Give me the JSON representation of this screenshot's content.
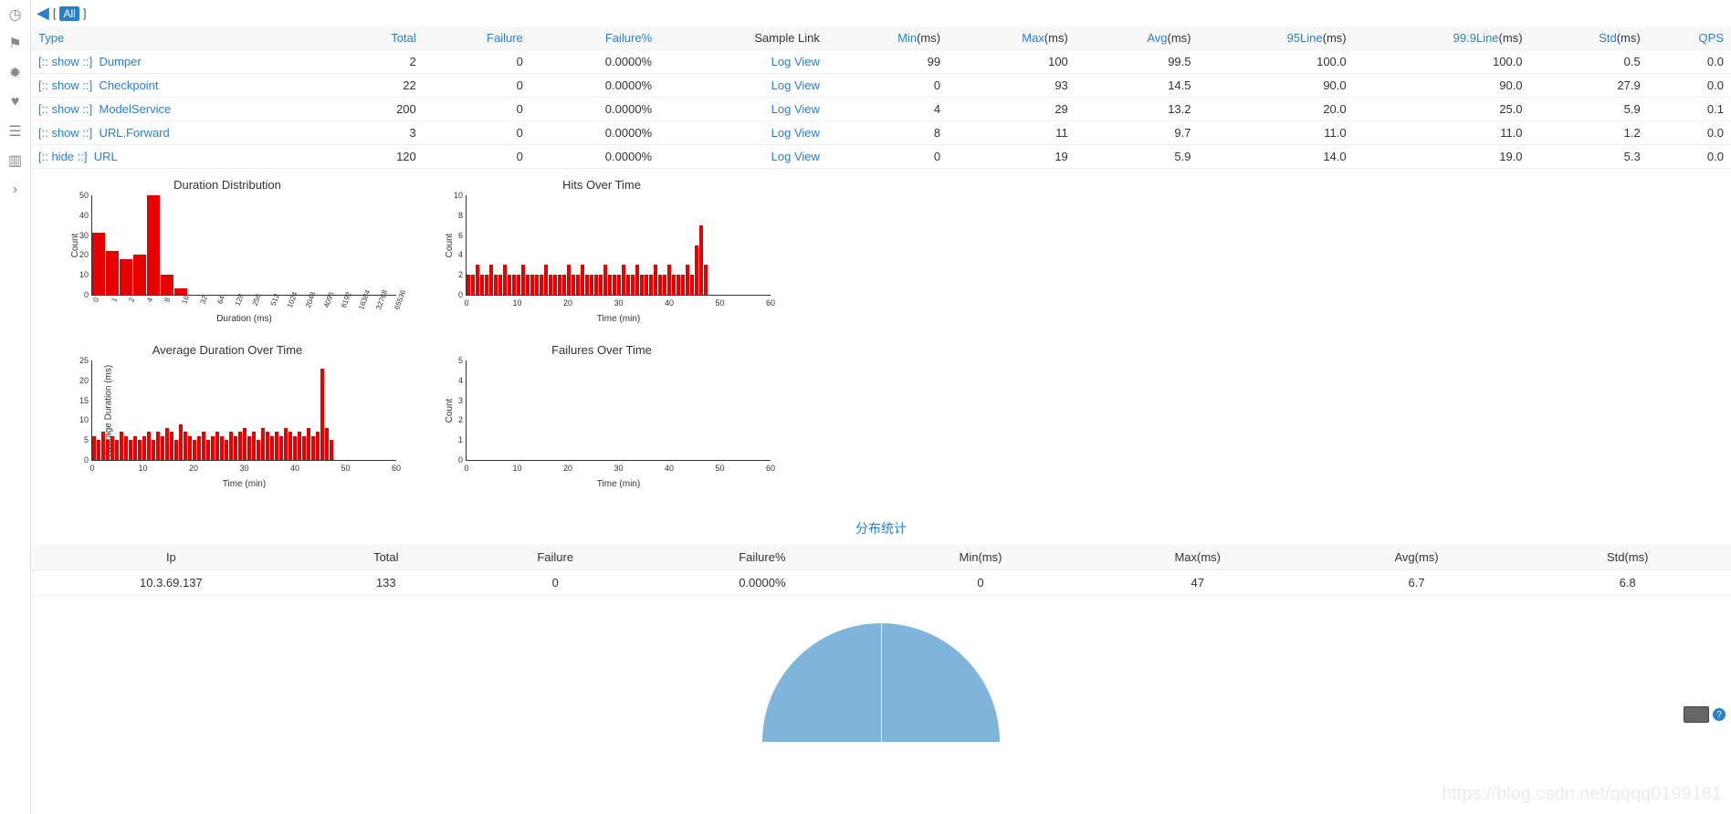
{
  "topbar": {
    "all_label": "All"
  },
  "sidebar": {
    "icons": [
      "clock-icon",
      "flag-icon",
      "bug-icon",
      "heart-icon",
      "list-icon",
      "chart-icon",
      "arrow-icon"
    ]
  },
  "table": {
    "headers": {
      "type": "Type",
      "total": "Total",
      "failure": "Failure",
      "failure_pct": "Failure%",
      "sample": "Sample Link",
      "min": "Min",
      "max": "Max",
      "avg": "Avg",
      "p95": "95Line",
      "p999": "99.9Line",
      "std": "Std",
      "qps": "QPS",
      "ms": "(ms)"
    },
    "show_label": "[:: show ::]",
    "hide_label": "[:: hide ::]",
    "logview_label": "Log View",
    "rows": [
      {
        "toggle": "show",
        "name": "Dumper",
        "total": 2,
        "failure": 0,
        "failure_pct": "0.0000%",
        "min": 99,
        "max": 100,
        "avg": "99.5",
        "p95": "100.0",
        "p999": "100.0",
        "std": "0.5",
        "qps": "0.0"
      },
      {
        "toggle": "show",
        "name": "Checkpoint",
        "total": 22,
        "failure": 0,
        "failure_pct": "0.0000%",
        "min": 0,
        "max": 93,
        "avg": "14.5",
        "p95": "90.0",
        "p999": "90.0",
        "std": "27.9",
        "qps": "0.0"
      },
      {
        "toggle": "show",
        "name": "ModelService",
        "total": 200,
        "failure": 0,
        "failure_pct": "0.0000%",
        "min": 4,
        "max": 29,
        "avg": "13.2",
        "p95": "20.0",
        "p999": "25.0",
        "std": "5.9",
        "qps": "0.1"
      },
      {
        "toggle": "show",
        "name": "URL.Forward",
        "total": 3,
        "failure": 0,
        "failure_pct": "0.0000%",
        "min": 8,
        "max": 11,
        "avg": "9.7",
        "p95": "11.0",
        "p999": "11.0",
        "std": "1.2",
        "qps": "0.0"
      },
      {
        "toggle": "hide",
        "name": "URL",
        "total": 120,
        "failure": 0,
        "failure_pct": "0.0000%",
        "min": 0,
        "max": 19,
        "avg": "5.9",
        "p95": "14.0",
        "p999": "19.0",
        "std": "5.3",
        "qps": "0.0"
      }
    ]
  },
  "charts": {
    "bar_color": "#e60000",
    "duration_dist": {
      "title": "Duration Distribution",
      "ylabel": "Count",
      "xlabel": "Duration (ms)",
      "ylim": [
        0,
        50
      ],
      "ystep": 10,
      "x_ticks": [
        "0",
        "1",
        "2",
        "4",
        "8",
        "16",
        "32",
        "64",
        "128",
        "256",
        "512",
        "1024",
        "2048",
        "4096",
        "8192",
        "16384",
        "32768",
        "65536"
      ],
      "values": [
        31,
        22,
        18,
        20,
        50,
        10,
        3,
        0,
        0,
        0,
        0,
        0,
        0,
        0,
        0,
        0,
        0,
        0
      ]
    },
    "hits_over_time": {
      "title": "Hits Over Time",
      "ylabel": "Count",
      "xlabel": "Time (min)",
      "ylim": [
        0,
        10
      ],
      "ystep": 2,
      "x_ticks": [
        "0",
        "10",
        "20",
        "30",
        "40",
        "50",
        "60"
      ],
      "values": [
        2,
        2,
        3,
        2,
        2,
        3,
        2,
        2,
        3,
        2,
        2,
        2,
        3,
        2,
        2,
        2,
        2,
        3,
        2,
        2,
        2,
        2,
        3,
        2,
        2,
        3,
        2,
        2,
        2,
        2,
        3,
        2,
        2,
        2,
        3,
        2,
        2,
        3,
        2,
        2,
        2,
        3,
        2,
        2,
        3,
        2,
        2,
        2,
        3,
        2,
        5,
        7,
        3,
        0,
        0,
        0,
        0,
        0,
        0,
        0
      ]
    },
    "avg_duration": {
      "title": "Average Duration Over Time",
      "ylabel": "Average Duration (ms)",
      "xlabel": "Time (min)",
      "ylim": [
        0,
        25
      ],
      "ystep": 5,
      "x_ticks": [
        "0",
        "10",
        "20",
        "30",
        "40",
        "50",
        "60"
      ],
      "values": [
        6,
        5,
        7,
        5,
        6,
        5,
        7,
        6,
        5,
        6,
        5,
        6,
        7,
        5,
        7,
        6,
        8,
        7,
        5,
        9,
        7,
        6,
        5,
        6,
        7,
        5,
        6,
        7,
        6,
        5,
        7,
        6,
        7,
        8,
        6,
        7,
        5,
        8,
        7,
        6,
        7,
        6,
        8,
        7,
        6,
        7,
        6,
        8,
        6,
        7,
        23,
        8,
        5,
        0,
        0,
        0,
        0,
        0,
        0,
        0
      ]
    },
    "failures": {
      "title": "Failures Over Time",
      "ylabel": "Count",
      "xlabel": "Time (min)",
      "ylim": [
        0,
        5
      ],
      "ystep": 1,
      "x_ticks": [
        "0",
        "10",
        "20",
        "30",
        "40",
        "50",
        "60"
      ],
      "values": [
        0,
        0,
        0,
        0,
        0,
        0,
        0,
        0,
        0,
        0,
        0,
        0,
        0,
        0,
        0,
        0,
        0,
        0,
        0,
        0,
        0,
        0,
        0,
        0,
        0,
        0,
        0,
        0,
        0,
        0,
        0,
        0,
        0,
        0,
        0,
        0,
        0,
        0,
        0,
        0,
        0,
        0,
        0,
        0,
        0,
        0,
        0,
        0,
        0,
        0,
        0,
        0,
        0,
        0,
        0,
        0,
        0,
        0,
        0,
        0
      ]
    }
  },
  "dist_section": {
    "title": "分布统计",
    "headers": {
      "ip": "Ip",
      "total": "Total",
      "failure": "Failure",
      "failure_pct": "Failure%",
      "min": "Min(ms)",
      "max": "Max(ms)",
      "avg": "Avg(ms)",
      "std": "Std(ms)"
    },
    "rows": [
      {
        "ip": "10.3.69.137",
        "total": 133,
        "failure": 0,
        "failure_pct": "0.0000%",
        "min": 0,
        "max": 47,
        "avg": "6.7",
        "std": "6.8"
      }
    ]
  },
  "pie": {
    "color": "#7fb4db"
  },
  "watermark": "https://blog.csdn.net/qqqq0199181"
}
